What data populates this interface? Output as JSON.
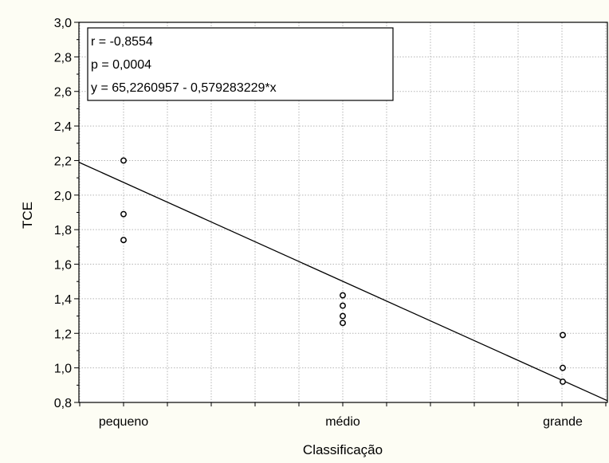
{
  "chart_data": {
    "type": "scatter",
    "xlabel": "Classificação",
    "ylabel": "TCE",
    "categories": [
      "pequeno",
      "médio",
      "grande"
    ],
    "ylim": [
      0.8,
      3.0
    ],
    "yticks": [
      "0,8",
      "1,0",
      "1,2",
      "1,4",
      "1,6",
      "1,8",
      "2,0",
      "2,2",
      "2,4",
      "2,6",
      "2,8",
      "3,0"
    ],
    "grid": true,
    "points": [
      {
        "category": "pequeno",
        "y": 2.2
      },
      {
        "category": "pequeno",
        "y": 1.89
      },
      {
        "category": "pequeno",
        "y": 1.74
      },
      {
        "category": "médio",
        "y": 1.42
      },
      {
        "category": "médio",
        "y": 1.36
      },
      {
        "category": "médio",
        "y": 1.3
      },
      {
        "category": "médio",
        "y": 1.26
      },
      {
        "category": "grande",
        "y": 1.19
      },
      {
        "category": "grande",
        "y": 1.0
      },
      {
        "category": "grande",
        "y": 0.92
      }
    ],
    "fit_line": {
      "y_start": 2.19,
      "y_end": 0.81
    },
    "annotations": [
      "r = -0,8554",
      "p = 0,0004",
      "y = 65,2260957 - 0,579283229*x"
    ],
    "annotation_position": "top-left"
  }
}
